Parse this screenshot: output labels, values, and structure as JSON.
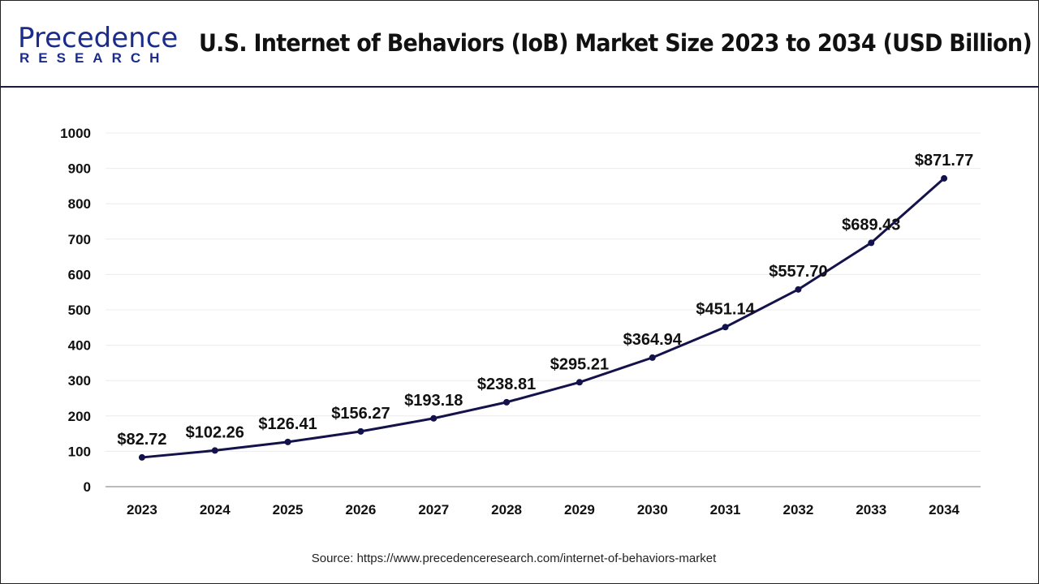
{
  "header": {
    "logo_text": "Precedence",
    "logo_subtext": "RESEARCH",
    "title": "U.S. Internet of Behaviors (IoB) Market Size 2023 to 2034 (USD Billion)"
  },
  "chart_data": {
    "type": "line",
    "title": "U.S. Internet of Behaviors (IoB) Market Size 2023 to 2034 (USD Billion)",
    "categories": [
      "2023",
      "2024",
      "2025",
      "2026",
      "2027",
      "2028",
      "2029",
      "2030",
      "2031",
      "2032",
      "2033",
      "2034"
    ],
    "values": [
      82.72,
      102.26,
      126.41,
      156.27,
      193.18,
      238.81,
      295.21,
      364.94,
      451.14,
      557.7,
      689.43,
      871.77
    ],
    "data_labels": [
      "$82.72",
      "$102.26",
      "$126.41",
      "$156.27",
      "$193.18",
      "$238.81",
      "$295.21",
      "$364.94",
      "$451.14",
      "$557.70",
      "$689.43",
      "$871.77"
    ],
    "yticks": [
      0,
      100,
      200,
      300,
      400,
      500,
      600,
      700,
      800,
      900,
      1000
    ],
    "ylim": [
      0,
      1000
    ],
    "grid": true,
    "line_color": "#14124a",
    "xlabel": "",
    "ylabel": ""
  },
  "footer": {
    "source": "Source: https://www.precedenceresearch.com/internet-of-behaviors-market"
  }
}
